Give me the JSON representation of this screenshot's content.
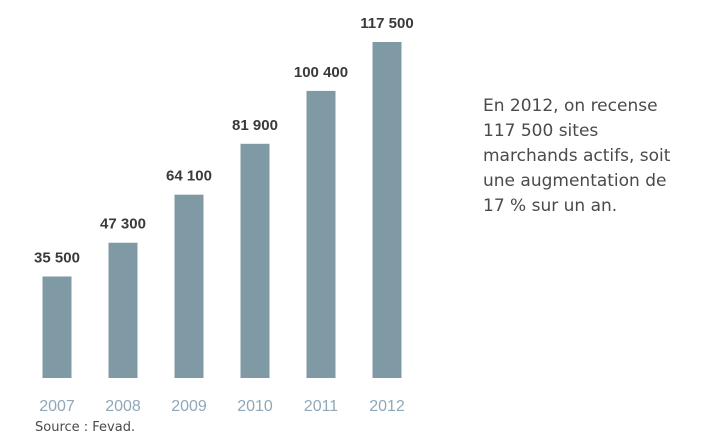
{
  "chart_data": {
    "type": "bar",
    "categories": [
      "2007",
      "2008",
      "2009",
      "2010",
      "2011",
      "2012"
    ],
    "values": [
      35500,
      47300,
      64100,
      81900,
      100400,
      117500
    ],
    "value_labels": [
      "35 500",
      "47 300",
      "64 100",
      "81 900",
      "100 400",
      "117 500"
    ],
    "color": "#7f9aa5",
    "annotation": [
      "En 2012, on recense",
      "117 500 sites",
      "marchands actifs, soit",
      "une augmentation de",
      "17 % sur un an."
    ],
    "source": "Source : Fevad."
  }
}
